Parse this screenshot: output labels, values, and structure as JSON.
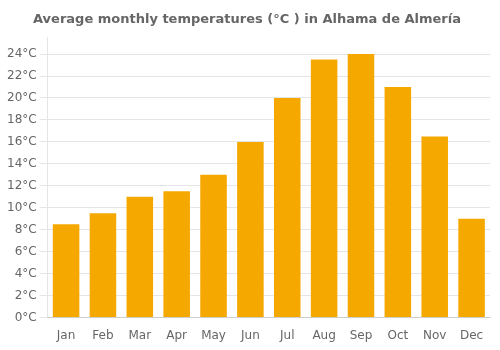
{
  "chart_data": {
    "type": "bar",
    "title": "Average monthly temperatures (°C ) in Alhama de Almería",
    "categories": [
      "Jan",
      "Feb",
      "Mar",
      "Apr",
      "May",
      "Jun",
      "Jul",
      "Aug",
      "Sep",
      "Oct",
      "Nov",
      "Dec"
    ],
    "values": [
      8.5,
      9.5,
      11.0,
      11.5,
      13.0,
      16.0,
      20.0,
      23.5,
      24.0,
      21.0,
      16.5,
      9.0
    ],
    "color": "#F5A800",
    "ylim": [
      0,
      25.5
    ],
    "yticks": [
      {
        "value": 0,
        "label": "0°C"
      },
      {
        "value": 2,
        "label": "2°C"
      },
      {
        "value": 4,
        "label": "4°C"
      },
      {
        "value": 6,
        "label": "6°C"
      },
      {
        "value": 8,
        "label": "8°C"
      },
      {
        "value": 10,
        "label": "10°C"
      },
      {
        "value": 12,
        "label": "12°C"
      },
      {
        "value": 14,
        "label": "14°C"
      },
      {
        "value": 16,
        "label": "16°C"
      },
      {
        "value": 18,
        "label": "18°C"
      },
      {
        "value": 20,
        "label": "20°C"
      },
      {
        "value": 22,
        "label": "22°C"
      },
      {
        "value": 24,
        "label": "24°C"
      }
    ],
    "grid": true
  }
}
